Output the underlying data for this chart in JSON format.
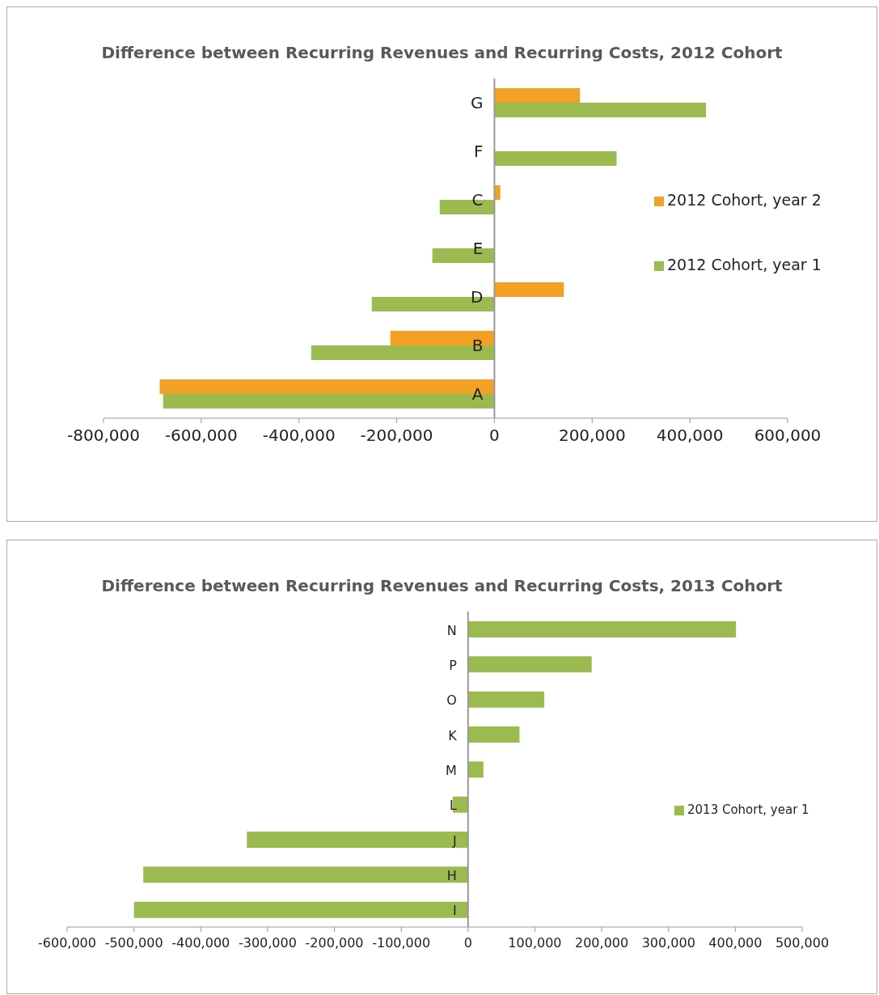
{
  "chart_data": [
    {
      "type": "bar",
      "orientation": "horizontal",
      "title": "Difference between Recurring Revenues and Recurring Costs, 2012 Cohort",
      "categories": [
        "G",
        "F",
        "C",
        "E",
        "D",
        "B",
        "A"
      ],
      "series": [
        {
          "name": "2012 Cohort, year 2",
          "color": "#f4a024",
          "values": [
            175000,
            null,
            12000,
            null,
            142000,
            -213000,
            -685000
          ]
        },
        {
          "name": "2012 Cohort, year 1",
          "color": "#9bbb50",
          "values": [
            433000,
            250000,
            -112000,
            -127000,
            -251000,
            -375000,
            -678000
          ]
        }
      ],
      "xlim": [
        -800000,
        600000
      ],
      "xticks": [
        {
          "value": -800000,
          "label": "-800,000"
        },
        {
          "value": -600000,
          "label": "-600,000"
        },
        {
          "value": -400000,
          "label": "-400,000"
        },
        {
          "value": -200000,
          "label": "-200,000"
        },
        0,
        {
          "value": 200000,
          "label": "200,000"
        },
        {
          "value": 400000,
          "label": "400,000"
        },
        {
          "value": 600000,
          "label": "600,000"
        }
      ],
      "legend": "right"
    },
    {
      "type": "bar",
      "orientation": "horizontal",
      "title": "Difference between Recurring Revenues and Recurring Costs, 2013 Cohort",
      "categories": [
        "N",
        "P",
        "O",
        "K",
        "M",
        "L",
        "J",
        "H",
        "I"
      ],
      "series": [
        {
          "name": "2013 Cohort, year 1",
          "color": "#9bbb50",
          "values": [
            401000,
            185000,
            114000,
            77000,
            23000,
            -23000,
            -331000,
            -486000,
            -500000
          ]
        }
      ],
      "xlim": [
        -600000,
        500000
      ],
      "xticks": [
        {
          "value": -600000,
          "label": "-600,000"
        },
        {
          "value": -500000,
          "label": "-500,000"
        },
        {
          "value": -400000,
          "label": "-400,000"
        },
        {
          "value": -300000,
          "label": "-300,000"
        },
        {
          "value": -200000,
          "label": "-200,000"
        },
        {
          "value": -100000,
          "label": "-100,000"
        },
        0,
        {
          "value": 100000,
          "label": "100,000"
        },
        {
          "value": 200000,
          "label": "200,000"
        },
        {
          "value": 300000,
          "label": "300,000"
        },
        {
          "value": 400000,
          "label": "400,000"
        },
        {
          "value": 500000,
          "label": "500,000"
        }
      ],
      "legend": "right"
    }
  ]
}
